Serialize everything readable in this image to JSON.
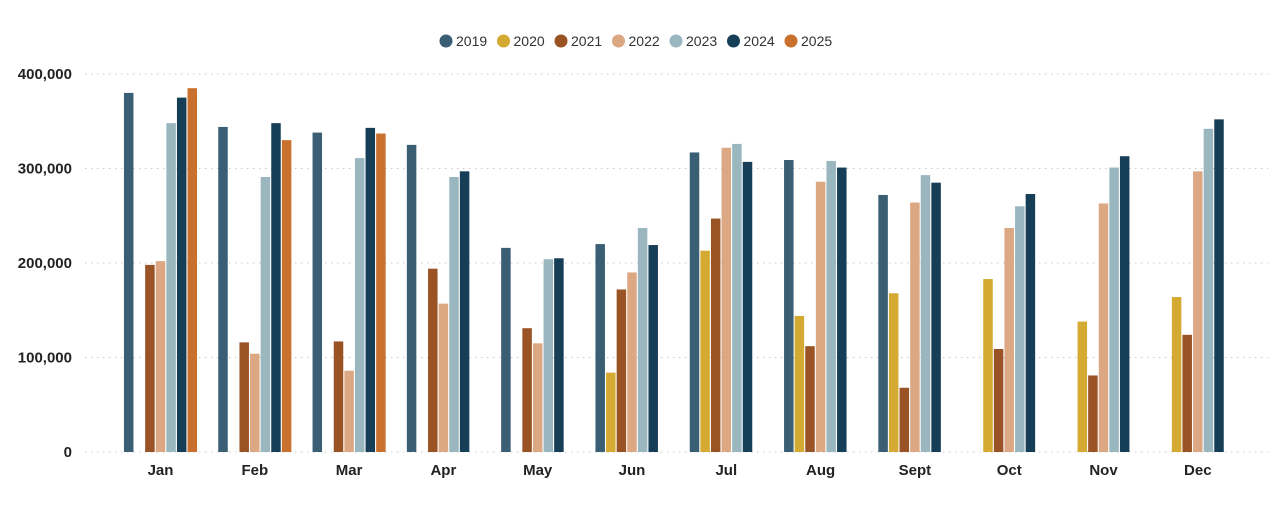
{
  "chart_data": {
    "type": "bar",
    "title": "",
    "xlabel": "",
    "ylabel": "",
    "ylim": [
      0,
      400000
    ],
    "yticks": [
      0,
      100000,
      200000,
      300000,
      400000
    ],
    "ytick_labels": [
      "0",
      "100,000",
      "200,000",
      "300,000",
      "400,000"
    ],
    "grid": true,
    "legend_position": "top-center",
    "categories": [
      "Jan",
      "Feb",
      "Mar",
      "Apr",
      "May",
      "Jun",
      "Jul",
      "Aug",
      "Sept",
      "Oct",
      "Nov",
      "Dec"
    ],
    "series": [
      {
        "name": "2019",
        "color": "#3a5f74",
        "values": [
          380000,
          344000,
          338000,
          325000,
          216000,
          220000,
          317000,
          309000,
          272000,
          null,
          null,
          null
        ]
      },
      {
        "name": "2020",
        "color": "#d4aa33",
        "values": [
          null,
          null,
          null,
          null,
          null,
          84000,
          213000,
          144000,
          168000,
          183000,
          138000,
          164000
        ]
      },
      {
        "name": "2021",
        "color": "#9a5325",
        "values": [
          198000,
          116000,
          117000,
          194000,
          131000,
          172000,
          247000,
          112000,
          68000,
          109000,
          81000,
          124000
        ]
      },
      {
        "name": "2022",
        "color": "#dca783",
        "values": [
          202000,
          104000,
          86000,
          157000,
          115000,
          190000,
          322000,
          286000,
          264000,
          237000,
          263000,
          297000
        ]
      },
      {
        "name": "2023",
        "color": "#9ab6bf",
        "values": [
          348000,
          291000,
          311000,
          291000,
          204000,
          237000,
          326000,
          308000,
          293000,
          260000,
          301000,
          342000
        ]
      },
      {
        "name": "2024",
        "color": "#163f57",
        "values": [
          375000,
          348000,
          343000,
          297000,
          205000,
          219000,
          307000,
          301000,
          285000,
          273000,
          313000,
          352000
        ]
      },
      {
        "name": "2025",
        "color": "#c9702e",
        "values": [
          385000,
          330000,
          337000,
          null,
          null,
          null,
          null,
          null,
          null,
          null,
          null,
          null
        ]
      }
    ]
  }
}
